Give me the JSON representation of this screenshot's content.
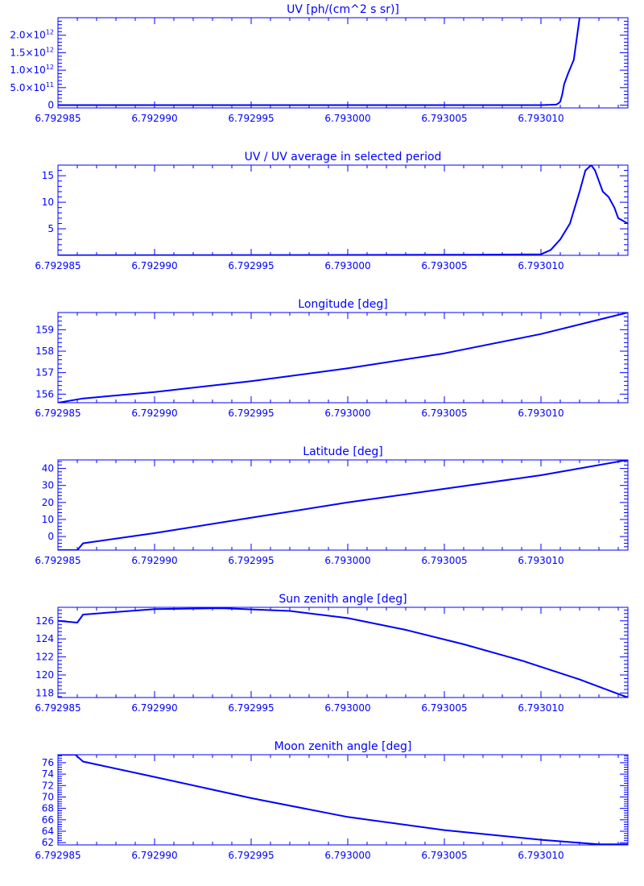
{
  "line_color": "#0000ff",
  "background": "#ffffff",
  "chart_data": [
    {
      "type": "line",
      "title": "UV [ph/(cm^2 s sr)]",
      "x_ticks": [
        6.792985,
        6.79299,
        6.792995,
        6.793,
        6.793005,
        6.79301
      ],
      "x_tick_labels": [
        "6.792985",
        "6.792990",
        "6.792995",
        "6.793000",
        "6.793005",
        "6.793010"
      ],
      "xlim": [
        6.792985,
        6.7930145
      ],
      "ylim": [
        -80000000000,
        2500000000000
      ],
      "y_ticks": [
        0,
        500000000000,
        1000000000000,
        1500000000000,
        2000000000000
      ],
      "y_tick_labels": [
        {
          "mant": "0",
          "exp": ""
        },
        {
          "mant": "5.0×10",
          "exp": "11"
        },
        {
          "mant": "1.0×10",
          "exp": "12"
        },
        {
          "mant": "1.5×10",
          "exp": "12"
        },
        {
          "mant": "2.0×10",
          "exp": "12"
        }
      ],
      "x": [
        6.792985,
        6.793,
        6.7930065,
        6.793009,
        6.79301,
        6.7930105,
        6.7930108,
        6.7930109,
        6.793011,
        6.7930111,
        6.7930112,
        6.7930114,
        6.7930117,
        6.793012
      ],
      "y": [
        0,
        0,
        0,
        0,
        0,
        10000000000,
        20000000000,
        50000000000,
        100000000000,
        300000000000,
        600000000000,
        900000000000,
        1300000000000,
        2500000000000
      ]
    },
    {
      "type": "line",
      "title": "UV / UV average in selected period",
      "x_ticks": [
        6.792985,
        6.79299,
        6.792995,
        6.793,
        6.793005,
        6.79301
      ],
      "x_tick_labels": [
        "6.792985",
        "6.792990",
        "6.792995",
        "6.793000",
        "6.793005",
        "6.793010"
      ],
      "xlim": [
        6.792985,
        6.7930145
      ],
      "ylim": [
        0,
        17
      ],
      "y_ticks": [
        5,
        10,
        15
      ],
      "y_tick_labels": [
        "5",
        "10",
        "15"
      ],
      "x": [
        6.792985,
        6.7930065,
        6.79301,
        6.7930105,
        6.793011,
        6.7930115,
        6.793012,
        6.7930123,
        6.7930126,
        6.7930128,
        6.793013,
        6.7930132,
        6.7930135,
        6.7930138,
        6.793014,
        6.7930145
      ],
      "y": [
        0,
        0.1,
        0.2,
        1,
        3,
        6,
        12,
        16,
        17,
        16,
        14,
        12,
        11,
        9,
        7,
        6
      ]
    },
    {
      "type": "line",
      "title": "Longitude [deg]",
      "x_ticks": [
        6.792985,
        6.79299,
        6.792995,
        6.793,
        6.793005,
        6.79301
      ],
      "x_tick_labels": [
        "6.792985",
        "6.792990",
        "6.792995",
        "6.793000",
        "6.793005",
        "6.793010"
      ],
      "xlim": [
        6.792985,
        6.7930145
      ],
      "ylim": [
        155.6,
        159.8
      ],
      "y_ticks": [
        156,
        157,
        158,
        159
      ],
      "y_tick_labels": [
        "156",
        "157",
        "158",
        "159"
      ],
      "x": [
        6.792985,
        6.7929863,
        6.79299,
        6.792995,
        6.793,
        6.793005,
        6.79301,
        6.7930145
      ],
      "y": [
        155.6,
        155.8,
        156.1,
        156.6,
        157.2,
        157.9,
        158.8,
        159.8
      ]
    },
    {
      "type": "line",
      "title": "Latitude [deg]",
      "x_ticks": [
        6.792985,
        6.79299,
        6.792995,
        6.793,
        6.793005,
        6.79301
      ],
      "x_tick_labels": [
        "6.792985",
        "6.792990",
        "6.792995",
        "6.793000",
        "6.793005",
        "6.793010"
      ],
      "xlim": [
        6.792985,
        6.7930145
      ],
      "ylim": [
        -8,
        45
      ],
      "y_ticks": [
        0,
        10,
        20,
        30,
        40
      ],
      "y_tick_labels": [
        "0",
        "10",
        "20",
        "30",
        "40"
      ],
      "x": [
        6.792985,
        6.792986,
        6.7929863,
        6.79299,
        6.792995,
        6.793,
        6.793005,
        6.79301,
        6.7930145
      ],
      "y": [
        -8,
        -8,
        -4,
        2,
        11,
        20,
        28,
        36,
        45
      ]
    },
    {
      "type": "line",
      "title": "Sun zenith angle [deg]",
      "x_ticks": [
        6.792985,
        6.79299,
        6.792995,
        6.793,
        6.793005,
        6.79301
      ],
      "x_tick_labels": [
        "6.792985",
        "6.792990",
        "6.792995",
        "6.793000",
        "6.793005",
        "6.793010"
      ],
      "xlim": [
        6.792985,
        6.7930145
      ],
      "ylim": [
        117.5,
        127.5
      ],
      "y_ticks": [
        118,
        120,
        122,
        124,
        126
      ],
      "y_tick_labels": [
        "118",
        "120",
        "122",
        "124",
        "126"
      ],
      "x": [
        6.792985,
        6.792986,
        6.7929863,
        6.79299,
        6.7929935,
        6.792997,
        6.793,
        6.793003,
        6.793006,
        6.793009,
        6.793012,
        6.7930145
      ],
      "y": [
        126,
        125.8,
        126.7,
        127.3,
        127.4,
        127.1,
        126.3,
        125,
        123.4,
        121.6,
        119.5,
        117.5
      ]
    },
    {
      "type": "line",
      "title": "Moon zenith angle [deg]",
      "x_ticks": [
        6.792985,
        6.79299,
        6.792995,
        6.793,
        6.793005,
        6.79301
      ],
      "x_tick_labels": [
        "6.792985",
        "6.792990",
        "6.792995",
        "6.793000",
        "6.793005",
        "6.793010"
      ],
      "xlim": [
        6.792985,
        6.7930145
      ],
      "ylim": [
        61.6,
        77.4
      ],
      "y_ticks": [
        62,
        64,
        66,
        68,
        70,
        72,
        74,
        76
      ],
      "y_tick_labels": [
        "62",
        "64",
        "66",
        "68",
        "70",
        "72",
        "74",
        "76"
      ],
      "x": [
        6.792985,
        6.7929859,
        6.7929863,
        6.79299,
        6.792995,
        6.793,
        6.793005,
        6.79301,
        6.793013,
        6.7930145
      ],
      "y": [
        77.4,
        77.4,
        76.2,
        73.5,
        69.8,
        66.5,
        64.2,
        62.5,
        61.7,
        61.7
      ]
    }
  ]
}
